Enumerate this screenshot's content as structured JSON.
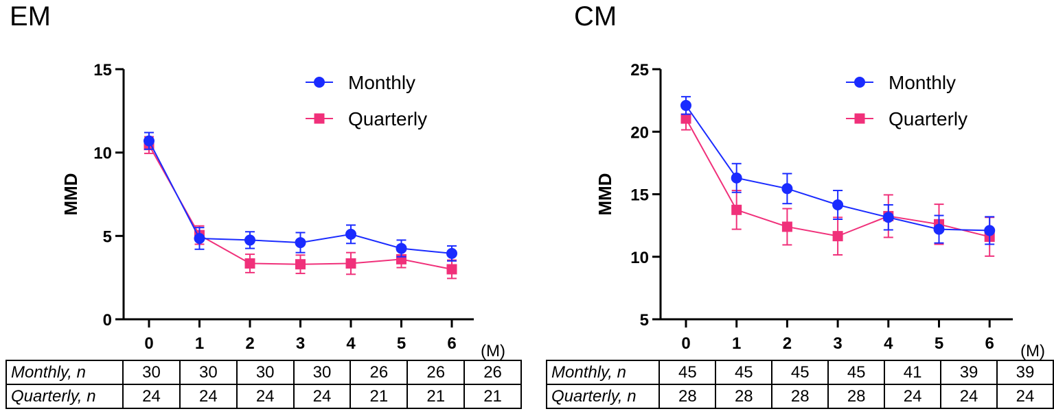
{
  "chart_data": [
    {
      "type": "line",
      "panel_title": "EM",
      "ylabel": "MMD",
      "xunit": "(M)",
      "x": [
        0,
        1,
        2,
        3,
        4,
        5,
        6
      ],
      "ylim": [
        0,
        15
      ],
      "yticks": [
        0,
        5,
        10,
        15
      ],
      "legend_position": "top-right",
      "series": [
        {
          "name": "Monthly",
          "color": "#1a2bff",
          "marker": "circle",
          "values": [
            10.7,
            4.85,
            4.75,
            4.6,
            5.1,
            4.25,
            3.95
          ],
          "err": [
            0.5,
            0.65,
            0.5,
            0.6,
            0.55,
            0.5,
            0.45
          ]
        },
        {
          "name": "Quarterly",
          "color": "#f0307a",
          "marker": "square",
          "values": [
            10.45,
            5.05,
            3.35,
            3.3,
            3.35,
            3.6,
            3.0
          ],
          "err": [
            0.5,
            0.55,
            0.55,
            0.55,
            0.65,
            0.5,
            0.55
          ]
        }
      ],
      "table": {
        "columns": [
          "0",
          "1",
          "2",
          "3",
          "4",
          "5",
          "6"
        ],
        "rows": [
          {
            "label": "Monthly, n",
            "values": [
              "30",
              "30",
              "30",
              "30",
              "26",
              "26",
              "26"
            ]
          },
          {
            "label": "Quarterly, n",
            "values": [
              "24",
              "24",
              "24",
              "24",
              "21",
              "21",
              "21"
            ]
          }
        ]
      }
    },
    {
      "type": "line",
      "panel_title": "CM",
      "ylabel": "MMD",
      "xunit": "(M)",
      "x": [
        0,
        1,
        2,
        3,
        4,
        5,
        6
      ],
      "ylim": [
        5,
        25
      ],
      "yticks": [
        5,
        10,
        15,
        20,
        25
      ],
      "legend_position": "top-right",
      "series": [
        {
          "name": "Monthly",
          "color": "#1a2bff",
          "marker": "circle",
          "values": [
            22.1,
            16.3,
            15.45,
            14.15,
            13.15,
            12.2,
            12.1
          ],
          "err": [
            0.7,
            1.15,
            1.2,
            1.15,
            1.0,
            1.1,
            1.1
          ]
        },
        {
          "name": "Quarterly",
          "color": "#f0307a",
          "marker": "square",
          "values": [
            21.05,
            13.75,
            12.4,
            11.65,
            13.25,
            12.6,
            11.6
          ],
          "err": [
            0.9,
            1.55,
            1.45,
            1.5,
            1.7,
            1.6,
            1.55
          ]
        }
      ],
      "table": {
        "columns": [
          "0",
          "1",
          "2",
          "3",
          "4",
          "5",
          "6"
        ],
        "rows": [
          {
            "label": "Monthly, n",
            "values": [
              "45",
              "45",
              "45",
              "45",
              "41",
              "39",
              "39"
            ]
          },
          {
            "label": "Quarterly, n",
            "values": [
              "28",
              "28",
              "28",
              "28",
              "24",
              "24",
              "24"
            ]
          }
        ]
      }
    }
  ]
}
